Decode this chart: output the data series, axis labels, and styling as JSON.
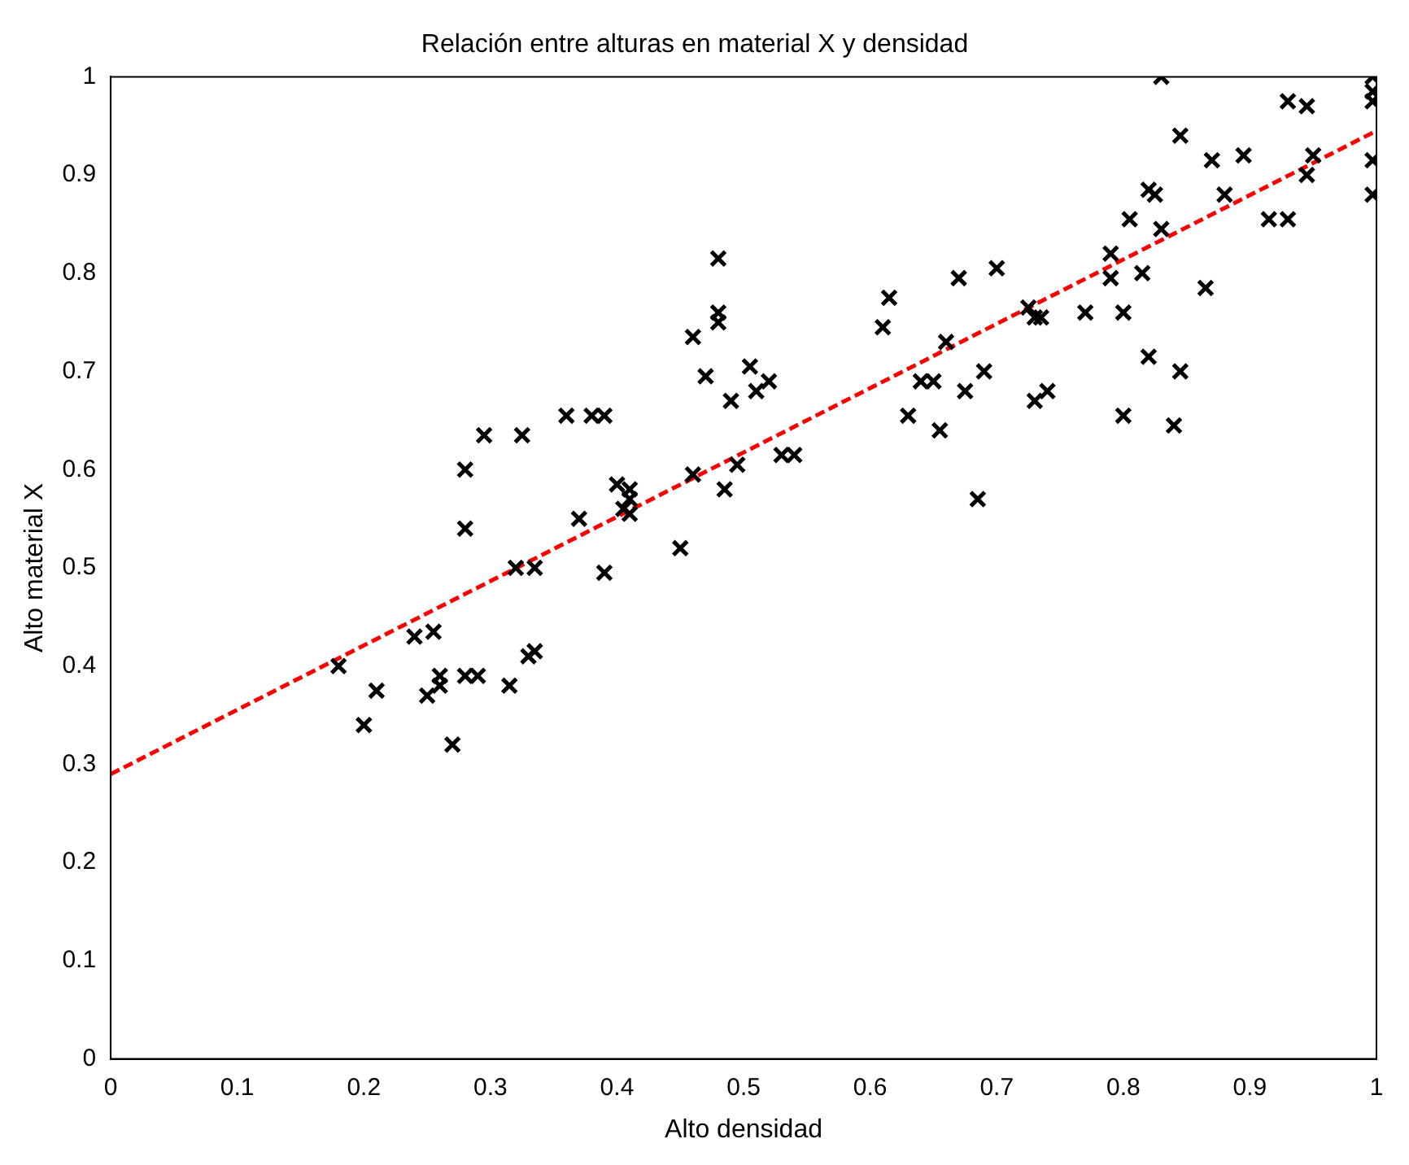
{
  "chart_data": {
    "type": "scatter",
    "title": "Relación entre alturas en material X y densidad",
    "xlabel": "Alto densidad",
    "ylabel": "Alto material X",
    "xlim": [
      0,
      1
    ],
    "ylim": [
      0,
      1
    ],
    "xticks": [
      0,
      0.1,
      0.2,
      0.3,
      0.4,
      0.5,
      0.6,
      0.7,
      0.8,
      0.9,
      1
    ],
    "yticks": [
      0,
      0.1,
      0.2,
      0.3,
      0.4,
      0.5,
      0.6,
      0.7,
      0.8,
      0.9,
      1
    ],
    "grid": false,
    "legend": false,
    "series": [
      {
        "color": "#000000",
        "marker": "cross",
        "x": [
          0.18,
          0.2,
          0.21,
          0.24,
          0.255,
          0.25,
          0.26,
          0.26,
          0.27,
          0.28,
          0.29,
          0.28,
          0.28,
          0.295,
          0.315,
          0.325,
          0.32,
          0.33,
          0.335,
          0.335,
          0.36,
          0.37,
          0.38,
          0.39,
          0.39,
          0.4,
          0.405,
          0.41,
          0.41,
          0.41,
          0.45,
          0.46,
          0.46,
          0.47,
          0.48,
          0.48,
          0.48,
          0.485,
          0.49,
          0.495,
          0.505,
          0.51,
          0.52,
          0.53,
          0.54,
          0.61,
          0.615,
          0.63,
          0.64,
          0.65,
          0.655,
          0.66,
          0.67,
          0.675,
          0.685,
          0.69,
          0.7,
          0.725,
          0.73,
          0.73,
          0.735,
          0.74,
          0.83,
          0.845,
          0.87,
          0.895,
          0.82,
          0.825,
          0.805,
          0.83,
          0.88,
          0.915,
          0.93,
          0.93,
          0.945,
          0.95,
          0.945,
          0.997,
          0.997,
          0.997,
          0.997,
          0.997,
          0.79,
          0.79,
          0.815,
          0.865,
          0.77,
          0.8,
          0.82,
          0.845,
          0.8,
          0.84
        ],
        "values": [
          0.4,
          0.34,
          0.375,
          0.43,
          0.435,
          0.37,
          0.39,
          0.38,
          0.32,
          0.39,
          0.39,
          0.6,
          0.54,
          0.635,
          0.38,
          0.635,
          0.5,
          0.41,
          0.415,
          0.5,
          0.655,
          0.55,
          0.655,
          0.655,
          0.495,
          0.585,
          0.56,
          0.555,
          0.58,
          0.57,
          0.52,
          0.735,
          0.595,
          0.695,
          0.75,
          0.76,
          0.815,
          0.58,
          0.67,
          0.605,
          0.705,
          0.68,
          0.69,
          0.615,
          0.615,
          0.745,
          0.775,
          0.655,
          0.69,
          0.69,
          0.64,
          0.73,
          0.795,
          0.68,
          0.57,
          0.7,
          0.805,
          0.765,
          0.67,
          0.755,
          0.755,
          0.68,
          1.0,
          0.94,
          0.915,
          0.92,
          0.885,
          0.88,
          0.855,
          0.845,
          0.88,
          0.855,
          0.855,
          0.975,
          0.97,
          0.92,
          0.9,
          1.0,
          0.985,
          0.975,
          0.915,
          0.88,
          0.82,
          0.795,
          0.8,
          0.785,
          0.76,
          0.76,
          0.715,
          0.7,
          0.655,
          0.645
        ]
      },
      {
        "type": "line",
        "color": "#ff0000",
        "line_style": "dashed",
        "marker": "none",
        "x": [
          0,
          1
        ],
        "values": [
          0.29,
          0.945
        ]
      }
    ]
  }
}
